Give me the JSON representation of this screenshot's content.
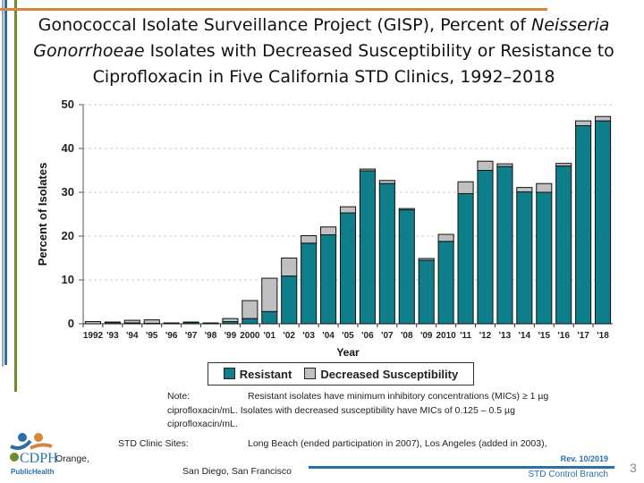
{
  "title": {
    "part1": "Gonococcal Isolate Surveillance Project (GISP), Percent of ",
    "italic1": "Neisseria Gonorrhoeae",
    "part2": " Isolates with Decreased Susceptibility or Resistance to Ciprofloxacin in Five California STD Clinics, 1992–2018"
  },
  "colors": {
    "resistant": "#0e7e8a",
    "decreased": "#c0c0c0",
    "accent_orange": "#d4873a",
    "accent_blue": "#2a6fa8",
    "accent_green": "#6e8b2e"
  },
  "chart_data": {
    "type": "bar",
    "stacked": true,
    "xlabel": "Year",
    "ylabel": "Percent of Isolates",
    "ylim": [
      0,
      50
    ],
    "yticks": [
      "0",
      "10",
      "20",
      "30",
      "40",
      "50"
    ],
    "grid": true,
    "legend_position": "bottom",
    "categories": [
      "1992",
      "'93",
      "'94",
      "'95",
      "'96",
      "'97",
      "'98",
      "'99",
      "2000",
      "'01",
      "'02",
      "'03",
      "'04",
      "'05",
      "'06",
      "'07",
      "'08",
      "'09",
      "2010",
      "'11",
      "'12",
      "'13",
      "'14",
      "'15",
      "'16",
      "'17",
      "'18"
    ],
    "series": [
      {
        "name": "Resistant",
        "values": [
          0,
          0.3,
          0.2,
          0.1,
          0.2,
          0.3,
          0.2,
          0.5,
          1.2,
          2.8,
          10.9,
          18.4,
          20.3,
          25.3,
          34.9,
          32.0,
          26.0,
          14.5,
          18.8,
          29.7,
          35.0,
          35.9,
          30.1,
          30.0,
          36.0,
          45.2,
          46.3
        ]
      },
      {
        "name": "Decreased Susceptibility",
        "values": [
          0.5,
          0.1,
          0.6,
          0.8,
          0,
          0.1,
          0,
          0.7,
          4.1,
          7.6,
          4.1,
          1.7,
          1.8,
          1.4,
          0.4,
          0.7,
          0.3,
          0.4,
          1.6,
          2.7,
          2.1,
          0.6,
          1.0,
          2.0,
          0.6,
          1.1,
          1.0
        ]
      }
    ]
  },
  "note": {
    "label": "Note:",
    "line1": "Resistant isolates have minimum inhibitory concentrations (MICs)  ≥ 1 µg",
    "line2": "ciprofloxacin/mL.  Isolates with decreased susceptibility have MICs of 0.125 – 0.5 µg",
    "line3": "ciprofloxacin/mL."
  },
  "sites": {
    "label": "STD Clinic Sites:",
    "line1": "Long Beach (ended participation in 2007), Los Angeles (added in 2003),",
    "orange": "Orange,",
    "line2": "San Diego, San Francisco"
  },
  "footer": {
    "rev": "Rev. 10/2019",
    "branch": "STD Control Branch",
    "page": "3"
  },
  "logo": {
    "text": "CDPH",
    "sub": "PublicHealth"
  }
}
